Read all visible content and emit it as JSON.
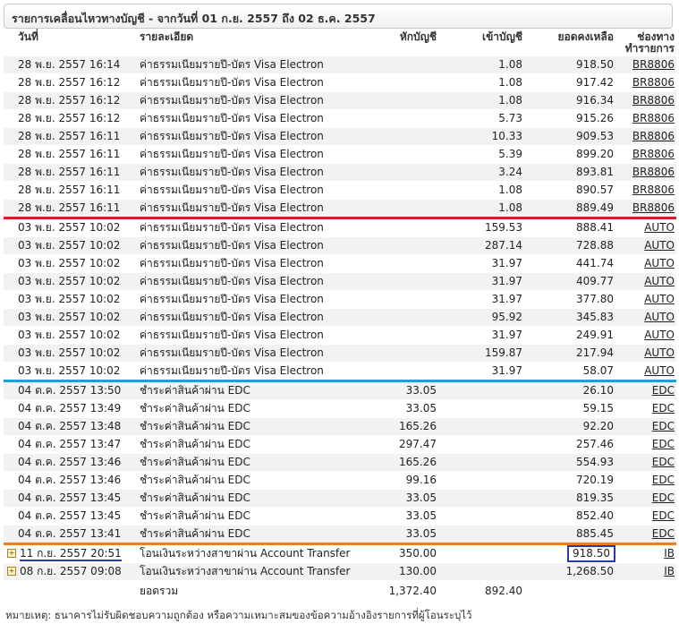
{
  "panel": {
    "title": "รายการเคลื่อนไหวทางบัญชี - จากวันที่ 01 ก.ย. 2557 ถึง 02 ธ.ค. 2557"
  },
  "headers": {
    "date": "วันที่",
    "description": "รายละเอียด",
    "debit": "หักบัญชี",
    "credit": "เข้าบัญชี",
    "balance": "ยอดคงเหลือ",
    "channel_line1": "ช่องทาง",
    "channel_line2": "ทำรายการ"
  },
  "rows": [
    {
      "date": "28 พ.ย. 2557 16:14",
      "desc": "ค่าธรรมเนียมรายปี-บัตร Visa Electron",
      "debit": "",
      "credit": "1.08",
      "balance": "918.50",
      "channel": "BR8806"
    },
    {
      "date": "28 พ.ย. 2557 16:12",
      "desc": "ค่าธรรมเนียมรายปี-บัตร Visa Electron",
      "debit": "",
      "credit": "1.08",
      "balance": "917.42",
      "channel": "BR8806"
    },
    {
      "date": "28 พ.ย. 2557 16:12",
      "desc": "ค่าธรรมเนียมรายปี-บัตร Visa Electron",
      "debit": "",
      "credit": "1.08",
      "balance": "916.34",
      "channel": "BR8806"
    },
    {
      "date": "28 พ.ย. 2557 16:12",
      "desc": "ค่าธรรมเนียมรายปี-บัตร Visa Electron",
      "debit": "",
      "credit": "5.73",
      "balance": "915.26",
      "channel": "BR8806"
    },
    {
      "date": "28 พ.ย. 2557 16:11",
      "desc": "ค่าธรรมเนียมรายปี-บัตร Visa Electron",
      "debit": "",
      "credit": "10.33",
      "balance": "909.53",
      "channel": "BR8806"
    },
    {
      "date": "28 พ.ย. 2557 16:11",
      "desc": "ค่าธรรมเนียมรายปี-บัตร Visa Electron",
      "debit": "",
      "credit": "5.39",
      "balance": "899.20",
      "channel": "BR8806"
    },
    {
      "date": "28 พ.ย. 2557 16:11",
      "desc": "ค่าธรรมเนียมรายปี-บัตร Visa Electron",
      "debit": "",
      "credit": "3.24",
      "balance": "893.81",
      "channel": "BR8806"
    },
    {
      "date": "28 พ.ย. 2557 16:11",
      "desc": "ค่าธรรมเนียมรายปี-บัตร Visa Electron",
      "debit": "",
      "credit": "1.08",
      "balance": "890.57",
      "channel": "BR8806"
    },
    {
      "date": "28 พ.ย. 2557 16:11",
      "desc": "ค่าธรรมเนียมรายปี-บัตร Visa Electron",
      "debit": "",
      "credit": "1.08",
      "balance": "889.49",
      "channel": "BR8806",
      "sep": "red"
    },
    {
      "date": "03 พ.ย. 2557 10:02",
      "desc": "ค่าธรรมเนียมรายปี-บัตร Visa Electron",
      "debit": "",
      "credit": "159.53",
      "balance": "888.41",
      "channel": "AUTO"
    },
    {
      "date": "03 พ.ย. 2557 10:02",
      "desc": "ค่าธรรมเนียมรายปี-บัตร Visa Electron",
      "debit": "",
      "credit": "287.14",
      "balance": "728.88",
      "channel": "AUTO"
    },
    {
      "date": "03 พ.ย. 2557 10:02",
      "desc": "ค่าธรรมเนียมรายปี-บัตร Visa Electron",
      "debit": "",
      "credit": "31.97",
      "balance": "441.74",
      "channel": "AUTO"
    },
    {
      "date": "03 พ.ย. 2557 10:02",
      "desc": "ค่าธรรมเนียมรายปี-บัตร Visa Electron",
      "debit": "",
      "credit": "31.97",
      "balance": "409.77",
      "channel": "AUTO"
    },
    {
      "date": "03 พ.ย. 2557 10:02",
      "desc": "ค่าธรรมเนียมรายปี-บัตร Visa Electron",
      "debit": "",
      "credit": "31.97",
      "balance": "377.80",
      "channel": "AUTO"
    },
    {
      "date": "03 พ.ย. 2557 10:02",
      "desc": "ค่าธรรมเนียมรายปี-บัตร Visa Electron",
      "debit": "",
      "credit": "95.92",
      "balance": "345.83",
      "channel": "AUTO"
    },
    {
      "date": "03 พ.ย. 2557 10:02",
      "desc": "ค่าธรรมเนียมรายปี-บัตร Visa Electron",
      "debit": "",
      "credit": "31.97",
      "balance": "249.91",
      "channel": "AUTO"
    },
    {
      "date": "03 พ.ย. 2557 10:02",
      "desc": "ค่าธรรมเนียมรายปี-บัตร Visa Electron",
      "debit": "",
      "credit": "159.87",
      "balance": "217.94",
      "channel": "AUTO"
    },
    {
      "date": "03 พ.ย. 2557 10:02",
      "desc": "ค่าธรรมเนียมรายปี-บัตร Visa Electron",
      "debit": "",
      "credit": "31.97",
      "balance": "58.07",
      "channel": "AUTO",
      "sep": "blue"
    },
    {
      "date": "04 ต.ค. 2557 13:50",
      "desc": "ชำระค่าสินค้าผ่าน EDC",
      "debit": "33.05",
      "credit": "",
      "balance": "26.10",
      "channel": "EDC"
    },
    {
      "date": "04 ต.ค. 2557 13:49",
      "desc": "ชำระค่าสินค้าผ่าน EDC",
      "debit": "33.05",
      "credit": "",
      "balance": "59.15",
      "channel": "EDC"
    },
    {
      "date": "04 ต.ค. 2557 13:48",
      "desc": "ชำระค่าสินค้าผ่าน EDC",
      "debit": "165.26",
      "credit": "",
      "balance": "92.20",
      "channel": "EDC"
    },
    {
      "date": "04 ต.ค. 2557 13:47",
      "desc": "ชำระค่าสินค้าผ่าน EDC",
      "debit": "297.47",
      "credit": "",
      "balance": "257.46",
      "channel": "EDC"
    },
    {
      "date": "04 ต.ค. 2557 13:46",
      "desc": "ชำระค่าสินค้าผ่าน EDC",
      "debit": "165.26",
      "credit": "",
      "balance": "554.93",
      "channel": "EDC"
    },
    {
      "date": "04 ต.ค. 2557 13:46",
      "desc": "ชำระค่าสินค้าผ่าน EDC",
      "debit": "99.16",
      "credit": "",
      "balance": "720.19",
      "channel": "EDC"
    },
    {
      "date": "04 ต.ค. 2557 13:45",
      "desc": "ชำระค่าสินค้าผ่าน EDC",
      "debit": "33.05",
      "credit": "",
      "balance": "819.35",
      "channel": "EDC"
    },
    {
      "date": "04 ต.ค. 2557 13:45",
      "desc": "ชำระค่าสินค้าผ่าน EDC",
      "debit": "33.05",
      "credit": "",
      "balance": "852.40",
      "channel": "EDC"
    },
    {
      "date": "04 ต.ค. 2557 13:41",
      "desc": "ชำระค่าสินค้าผ่าน EDC",
      "debit": "33.05",
      "credit": "",
      "balance": "885.45",
      "channel": "EDC",
      "sep": "orange"
    },
    {
      "date": "11 ก.ย. 2557 20:51",
      "desc": "โอนเงินระหว่างสาขาผ่าน Account Transfer",
      "debit": "350.00",
      "credit": "",
      "balance": "918.50",
      "channel": "IB",
      "expand": "+",
      "date_underline": true,
      "balance_box": true
    },
    {
      "date": "08 ก.ย. 2557 09:08",
      "desc": "โอนเงินระหว่างสาขาผ่าน Account Transfer",
      "debit": "130.00",
      "credit": "",
      "balance": "1,268.50",
      "channel": "IB",
      "expand": "+"
    }
  ],
  "totals": {
    "label": "ยอดรวม",
    "debit": "1,372.40",
    "credit": "892.40"
  },
  "note": "หมายเหตุ: ธนาคารไม่รับผิดชอบความถูกต้อง หรือความเหมาะสมของข้อความอ้างอิงรายการที่ผู้โอนระบุไว้",
  "colors": {
    "sep_red": "#d11f2c",
    "sep_blue": "#1aa0dc",
    "sep_orange": "#f07f1a",
    "highlight": "#2a3aa6"
  }
}
